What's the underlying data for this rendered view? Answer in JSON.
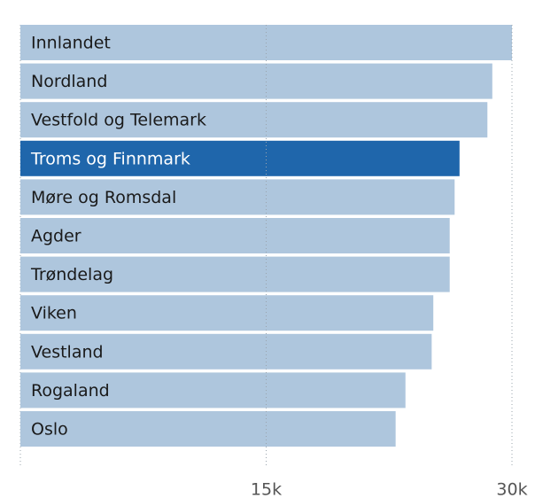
{
  "chart_data": {
    "type": "barh",
    "categories": [
      "Innlandet",
      "Nordland",
      "Vestfold og Telemark",
      "Troms og Finnmark",
      "Møre og Romsdal",
      "Agder",
      "Trøndelag",
      "Viken",
      "Vestland",
      "Rogaland",
      "Oslo"
    ],
    "values": [
      30000,
      28800,
      28500,
      26800,
      26500,
      26200,
      26200,
      25200,
      25100,
      23500,
      22900
    ],
    "colors": [
      "#aec6dd",
      "#aec6dd",
      "#aec6dd",
      "#1f66ab",
      "#aec6dd",
      "#aec6dd",
      "#aec6dd",
      "#aec6dd",
      "#aec6dd",
      "#aec6dd",
      "#aec6dd"
    ],
    "xlim": [
      0,
      30000
    ],
    "xticks": [
      {
        "value": 15000,
        "label": "15k"
      },
      {
        "value": 30000,
        "label": "30k"
      }
    ],
    "grid": true
  }
}
